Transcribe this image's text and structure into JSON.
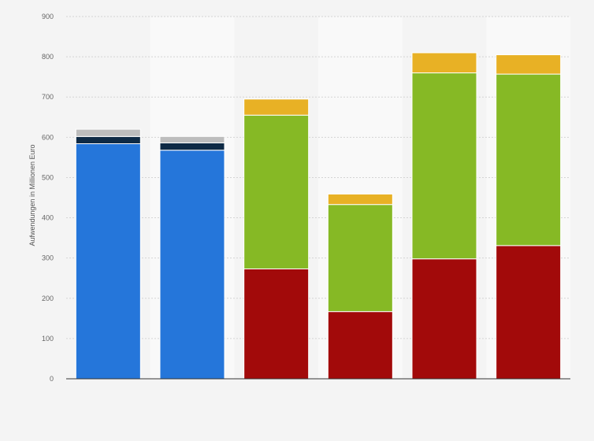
{
  "chart_data": {
    "type": "bar",
    "stacked": true,
    "title": "",
    "xlabel": "",
    "ylabel": "Aufwendungen in Millionen Euro",
    "ylim": [
      0,
      900
    ],
    "yticks": [
      0,
      100,
      200,
      300,
      400,
      500,
      600,
      700,
      800,
      900
    ],
    "grid": true,
    "legend": "none",
    "categories": [
      "",
      "",
      "",
      "",
      "",
      ""
    ],
    "series": [
      {
        "color": "#2576da",
        "values": [
          584,
          568,
          0,
          0,
          0,
          0
        ]
      },
      {
        "color": "#0e2a45",
        "values": [
          18,
          18,
          0,
          0,
          0,
          0
        ]
      },
      {
        "color": "#bdbdbd",
        "values": [
          18,
          16,
          0,
          0,
          0,
          0
        ]
      },
      {
        "color": "#a20a0a",
        "values": [
          0,
          0,
          273,
          167,
          298,
          331
        ]
      },
      {
        "color": "#86b925",
        "values": [
          0,
          0,
          382,
          266,
          462,
          426
        ]
      },
      {
        "color": "#e8b125",
        "values": [
          0,
          0,
          40,
          26,
          50,
          48
        ]
      }
    ]
  }
}
